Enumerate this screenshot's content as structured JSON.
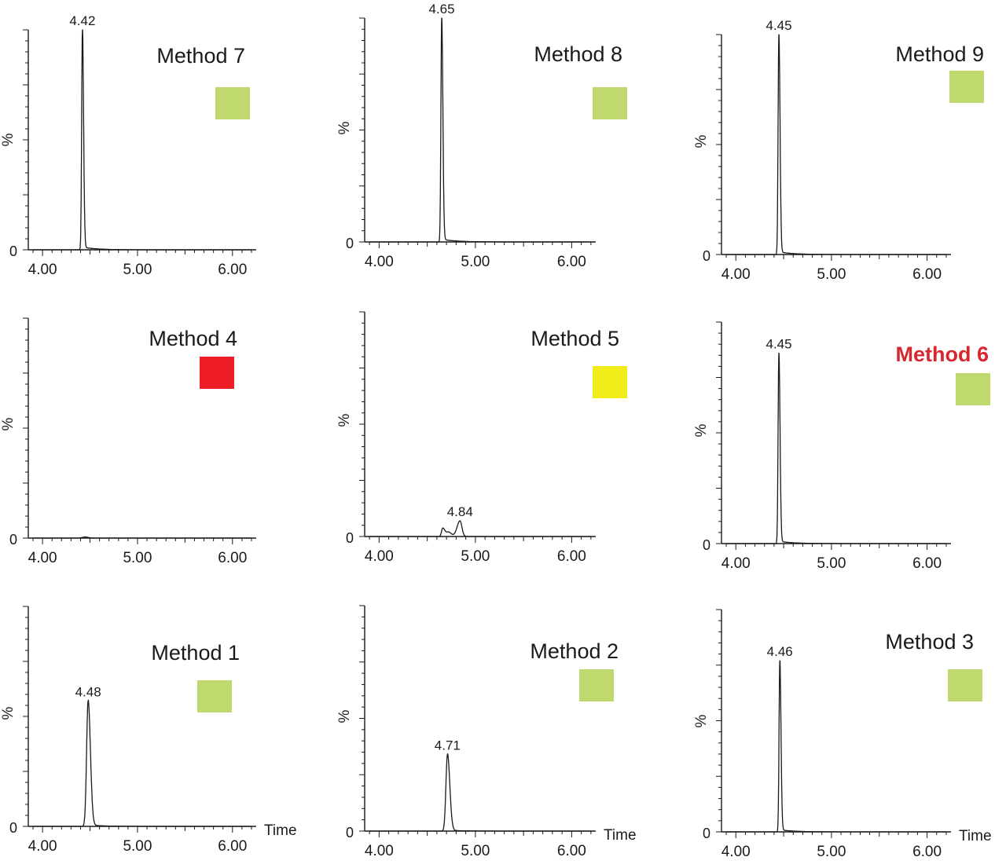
{
  "colors": {
    "green": "#c0d96e",
    "red": "#ee1c25",
    "yellow": "#f2eb1a",
    "title_highlight": "#d7282f"
  },
  "chart_data": [
    {
      "type": "line",
      "title": "Method 7",
      "status_color": "green",
      "ylabel": "%",
      "y_tick_labels": [
        "0"
      ],
      "x_ticks": [
        "4.00",
        "5.00",
        "6.00"
      ],
      "xlim": [
        3.85,
        6.25
      ],
      "ylim": [
        0,
        100
      ],
      "peak": {
        "x": 4.42,
        "y": 100,
        "label": "4.42"
      }
    },
    {
      "type": "line",
      "title": "Method 8",
      "status_color": "green",
      "ylabel": "%",
      "y_tick_labels": [
        "0"
      ],
      "x_ticks": [
        "4.00",
        "5.00",
        "6.00"
      ],
      "xlim": [
        3.85,
        6.25
      ],
      "ylim": [
        0,
        100
      ],
      "peak": {
        "x": 4.65,
        "y": 100,
        "label": "4.65"
      }
    },
    {
      "type": "line",
      "title": "Method 9",
      "status_color": "green",
      "ylabel": "%",
      "y_tick_labels": [
        "0"
      ],
      "x_ticks": [
        "4.00",
        "5.00",
        "6.00"
      ],
      "xlim": [
        3.85,
        6.25
      ],
      "ylim": [
        0,
        100
      ],
      "peak": {
        "x": 4.45,
        "y": 100,
        "label": "4.45"
      }
    },
    {
      "type": "line",
      "title": "Method 4",
      "status_color": "red",
      "ylabel": "%",
      "y_tick_labels": [
        "0"
      ],
      "x_ticks": [
        "4.00",
        "5.00",
        "6.00"
      ],
      "xlim": [
        3.85,
        6.25
      ],
      "ylim": [
        0,
        100
      ],
      "peak": {
        "x": 4.45,
        "y": 0.5,
        "label": ""
      }
    },
    {
      "type": "line",
      "title": "Method 5",
      "status_color": "yellow",
      "ylabel": "%",
      "y_tick_labels": [
        "0"
      ],
      "x_ticks": [
        "4.00",
        "5.00",
        "6.00"
      ],
      "xlim": [
        3.85,
        6.25
      ],
      "ylim": [
        0,
        100
      ],
      "peak": {
        "x": 4.84,
        "y": 7,
        "label": "4.84"
      }
    },
    {
      "type": "line",
      "title": "Method 6",
      "title_highlight": true,
      "status_color": "green",
      "ylabel": "%",
      "y_tick_labels": [
        "0"
      ],
      "x_ticks": [
        "4.00",
        "5.00",
        "6.00"
      ],
      "xlim": [
        3.85,
        6.25
      ],
      "ylim": [
        0,
        100
      ],
      "peak": {
        "x": 4.45,
        "y": 86,
        "label": "4.45"
      }
    },
    {
      "type": "line",
      "title": "Method 1",
      "status_color": "green",
      "ylabel": "%",
      "xlabel": "Time",
      "y_tick_labels": [
        "0"
      ],
      "x_ticks": [
        "4.00",
        "5.00",
        "6.00"
      ],
      "xlim": [
        3.85,
        6.25
      ],
      "ylim": [
        0,
        100
      ],
      "peak": {
        "x": 4.48,
        "y": 57,
        "label": "4.48"
      }
    },
    {
      "type": "line",
      "title": "Method 2",
      "status_color": "green",
      "ylabel": "%",
      "xlabel": "Time",
      "y_tick_labels": [
        "0"
      ],
      "x_ticks": [
        "4.00",
        "5.00",
        "6.00"
      ],
      "xlim": [
        3.85,
        6.25
      ],
      "ylim": [
        0,
        100
      ],
      "peak": {
        "x": 4.71,
        "y": 34,
        "label": "4.71"
      }
    },
    {
      "type": "line",
      "title": "Method 3",
      "status_color": "green",
      "ylabel": "%",
      "xlabel": "Time",
      "y_tick_labels": [
        "0"
      ],
      "x_ticks": [
        "4.00",
        "5.00",
        "6.00"
      ],
      "xlim": [
        3.85,
        6.25
      ],
      "ylim": [
        0,
        100
      ],
      "peak": {
        "x": 4.46,
        "y": 77,
        "label": "4.46"
      }
    }
  ]
}
